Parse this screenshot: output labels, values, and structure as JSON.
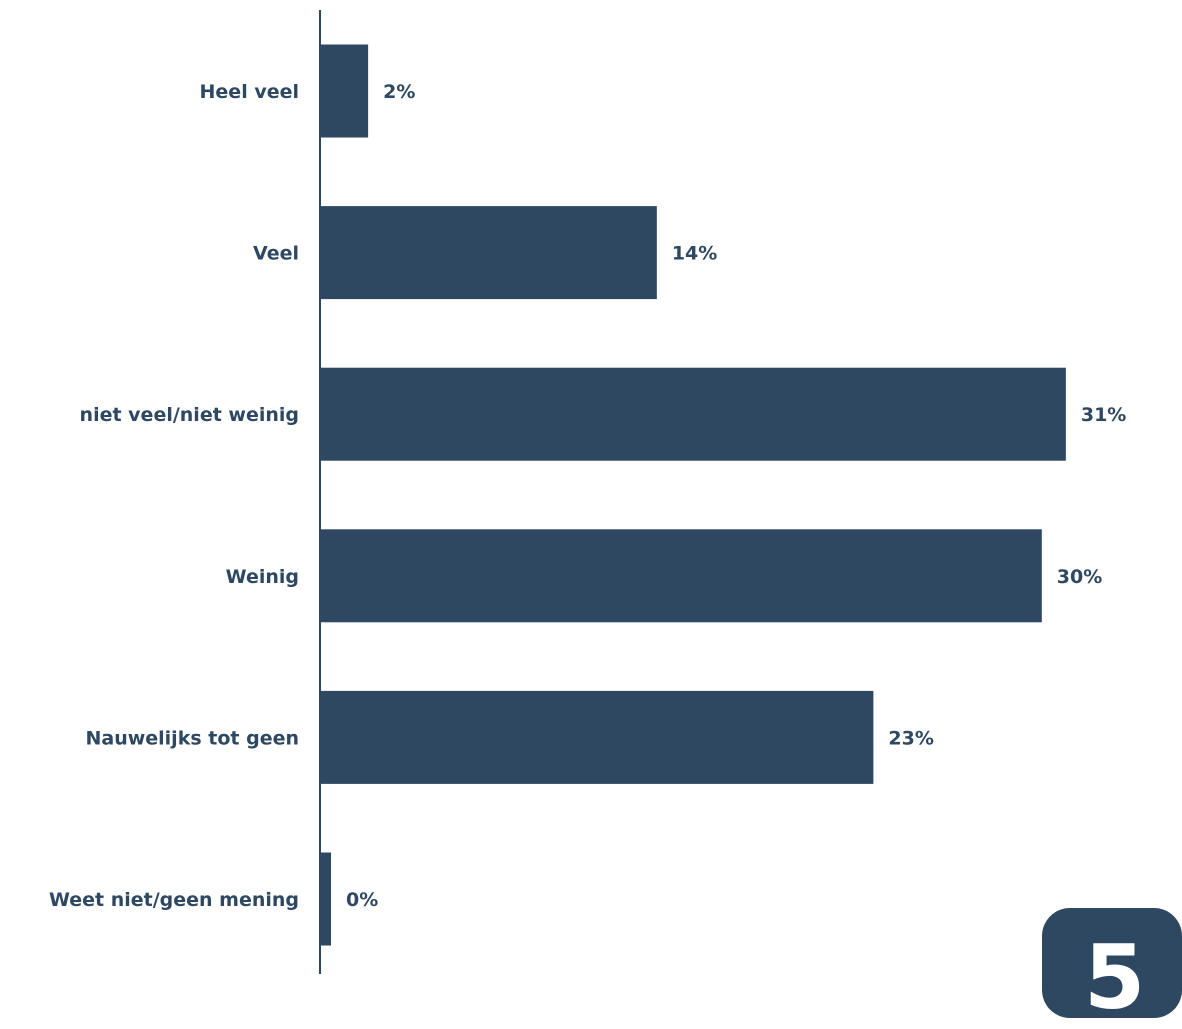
{
  "colors": {
    "bar": "#2e4862",
    "text": "#2e4862",
    "axis": "#2e4862"
  },
  "chart_data": {
    "type": "bar",
    "orientation": "horizontal",
    "categories": [
      "Heel veel",
      "Veel",
      "niet veel/niet weinig",
      "Weinig",
      "Nauwelijks tot geen",
      "Weet niet/geen mening"
    ],
    "values": [
      2,
      14,
      31,
      30,
      23,
      0
    ],
    "value_labels": [
      "2%",
      "14%",
      "31%",
      "30%",
      "23%",
      "0%"
    ],
    "unit": "%",
    "xlim": [
      0,
      31
    ],
    "grid": false,
    "legend": "none"
  },
  "badge": {
    "text": "5"
  }
}
